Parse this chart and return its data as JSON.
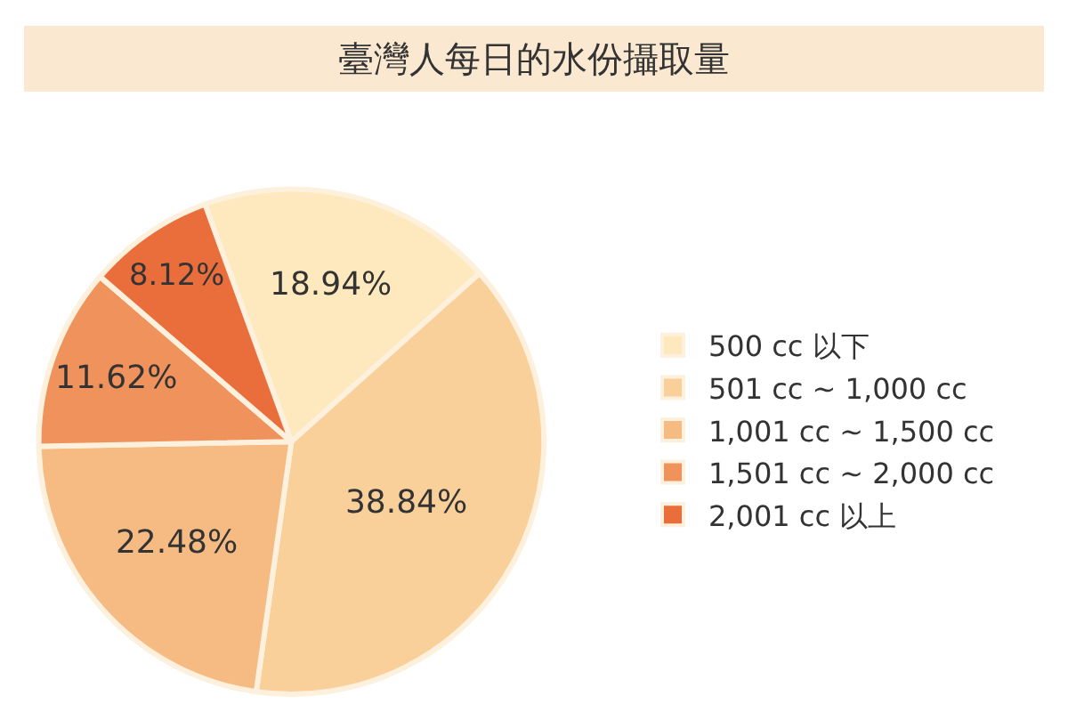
{
  "chart_data": {
    "type": "pie",
    "title": "臺灣人每日的水份攝取量",
    "categories": [
      "500 cc 以下",
      "501 cc ~ 1,000 cc",
      "1,001 cc ~ 1,500 cc",
      "1,501 cc ~ 2,000 cc",
      "2,001 cc 以上"
    ],
    "values": [
      18.94,
      38.84,
      22.48,
      11.62,
      8.12
    ],
    "value_labels": [
      "18.94%",
      "38.84%",
      "22.48%",
      "11.62%",
      "8.12%"
    ],
    "colors": [
      "#fde9bd",
      "#f9cf9a",
      "#f6ba83",
      "#f0925c",
      "#ea6e3c"
    ],
    "legend": "right"
  }
}
